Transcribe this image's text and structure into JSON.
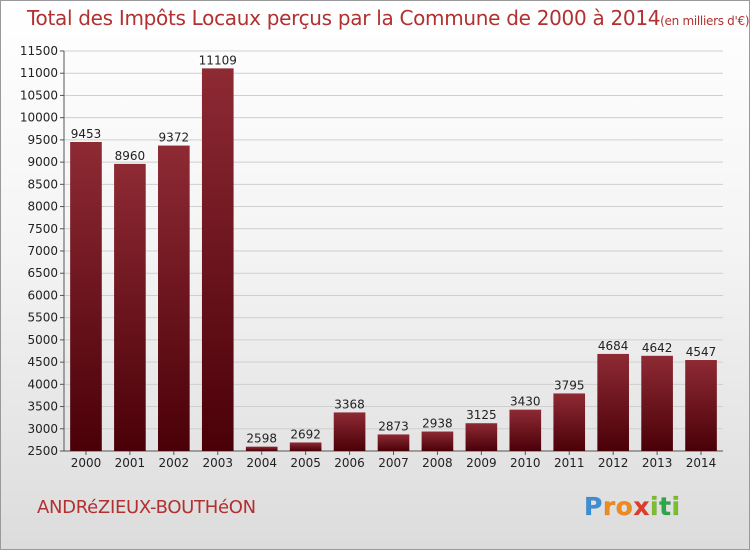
{
  "title": "Total des Impôts Locaux perçus par la Commune de 2000 à 2014",
  "title_unit": "(en milliers d'€)",
  "commune": "ANDRéZIEUX-BOUTHéON",
  "logo": {
    "letters": [
      "P",
      "r",
      "o",
      "x",
      "i",
      "t",
      "i"
    ],
    "colors": [
      "#3a8fd6",
      "#f08a1c",
      "#f08a1c",
      "#e23b2a",
      "#7bbf2a",
      "#2ba84a",
      "#7bbf2a"
    ]
  },
  "colors": {
    "bar_top": "#8e2a34",
    "bar_bottom": "#4a0008",
    "grid": "#cfcfcf",
    "axis": "#555555",
    "text": "#222222"
  },
  "chart_data": {
    "type": "bar",
    "title": "Total des Impôts Locaux perçus par la Commune de 2000 à 2014",
    "categories": [
      "2000",
      "2001",
      "2002",
      "2003",
      "2004",
      "2005",
      "2006",
      "2007",
      "2008",
      "2009",
      "2010",
      "2011",
      "2012",
      "2013",
      "2014"
    ],
    "values": [
      9453,
      8960,
      9372,
      11109,
      2598,
      2692,
      3368,
      2873,
      2938,
      3125,
      3430,
      3795,
      4684,
      4642,
      4547
    ],
    "ylim": [
      2500,
      11500
    ],
    "yticks": [
      2500,
      3000,
      3500,
      4000,
      4500,
      5000,
      5500,
      6000,
      6500,
      7000,
      7500,
      8000,
      8500,
      9000,
      9500,
      10000,
      10500,
      11000,
      11500
    ],
    "grid": true,
    "xlabel": "",
    "ylabel": ""
  }
}
